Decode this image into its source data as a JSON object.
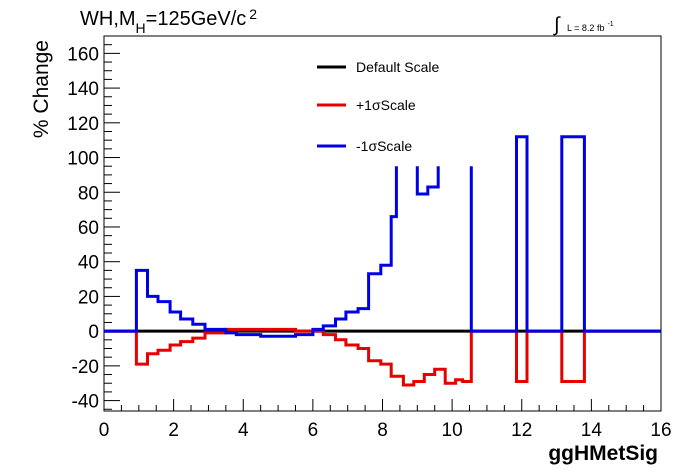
{
  "chart_data": {
    "type": "line",
    "title": "WH,M",
    "title_sub": "H",
    "title_eq": "=125GeV/c",
    "title_sup": "2",
    "lumi_text": "L = 8.2 fb",
    "lumi_sup": "-1",
    "xlabel": "ggHMetSig",
    "ylabel": "% Change",
    "xlim": [
      0,
      16
    ],
    "ylim": [
      -46,
      170
    ],
    "xticks": [
      0,
      2,
      4,
      6,
      8,
      10,
      12,
      14,
      16
    ],
    "yticks": [
      -40,
      -20,
      0,
      20,
      40,
      60,
      80,
      100,
      120,
      140,
      160
    ],
    "x_minor_step": 0.5,
    "y_minor_step": 5,
    "grid": false,
    "legend_position": "top-center",
    "series": [
      {
        "name": "Default Scale",
        "color": "#000000",
        "segments": [
          [
            [
              0,
              0
            ],
            [
              16,
              0
            ]
          ]
        ]
      },
      {
        "name": "+1σScale",
        "color": "#e60000",
        "segments": [
          [
            [
              0,
              0
            ],
            [
              0.93,
              0
            ],
            [
              0.93,
              -19
            ],
            [
              1.25,
              -19
            ],
            [
              1.25,
              -13
            ],
            [
              1.55,
              -13
            ],
            [
              1.55,
              -11
            ],
            [
              1.9,
              -11
            ],
            [
              1.9,
              -8
            ],
            [
              2.2,
              -8
            ],
            [
              2.2,
              -6
            ],
            [
              2.55,
              -6
            ],
            [
              2.55,
              -4
            ],
            [
              2.9,
              -4
            ],
            [
              2.9,
              -1
            ],
            [
              3.5,
              -1
            ],
            [
              3.5,
              1
            ],
            [
              5.5,
              1
            ],
            [
              5.5,
              0
            ],
            [
              6.3,
              0
            ],
            [
              6.3,
              -2
            ],
            [
              6.65,
              -2
            ],
            [
              6.65,
              -5
            ],
            [
              6.95,
              -5
            ],
            [
              6.95,
              -8
            ],
            [
              7.3,
              -8
            ],
            [
              7.3,
              -10
            ],
            [
              7.6,
              -10
            ],
            [
              7.6,
              -17
            ],
            [
              7.95,
              -17
            ],
            [
              7.95,
              -19
            ],
            [
              8.25,
              -19
            ],
            [
              8.25,
              -26
            ],
            [
              8.6,
              -26
            ],
            [
              8.6,
              -31
            ],
            [
              8.9,
              -31
            ],
            [
              8.9,
              -29
            ],
            [
              9.2,
              -29
            ],
            [
              9.2,
              -25
            ],
            [
              9.5,
              -25
            ],
            [
              9.5,
              -22
            ],
            [
              9.8,
              -22
            ],
            [
              9.8,
              -30
            ],
            [
              10.1,
              -30
            ],
            [
              10.1,
              -28
            ],
            [
              10.3,
              -28
            ],
            [
              10.3,
              -29
            ],
            [
              10.55,
              -29
            ],
            [
              10.55,
              0
            ],
            [
              11.85,
              0
            ],
            [
              11.85,
              -29
            ],
            [
              12.15,
              -29
            ],
            [
              12.15,
              0
            ],
            [
              13.15,
              0
            ],
            [
              13.15,
              -29
            ],
            [
              13.8,
              -29
            ],
            [
              13.8,
              0
            ],
            [
              16,
              0
            ]
          ]
        ]
      },
      {
        "name": "-1σScale",
        "color": "#0000e6",
        "segments": [
          [
            [
              0,
              0
            ],
            [
              0.93,
              0
            ],
            [
              0.93,
              35
            ],
            [
              1.25,
              35
            ],
            [
              1.25,
              20
            ],
            [
              1.55,
              20
            ],
            [
              1.55,
              17
            ],
            [
              1.9,
              17
            ],
            [
              1.9,
              11
            ],
            [
              2.2,
              11
            ],
            [
              2.2,
              7
            ],
            [
              2.55,
              7
            ],
            [
              2.55,
              4
            ],
            [
              2.9,
              4
            ],
            [
              2.9,
              1
            ],
            [
              3.5,
              1
            ],
            [
              3.5,
              -1
            ],
            [
              3.8,
              -1
            ],
            [
              3.8,
              -2
            ],
            [
              4.5,
              -2
            ],
            [
              4.5,
              -3
            ],
            [
              5.5,
              -3
            ],
            [
              5.5,
              -2
            ],
            [
              6.0,
              -2
            ],
            [
              6.0,
              1
            ],
            [
              6.3,
              1
            ],
            [
              6.3,
              3
            ],
            [
              6.65,
              3
            ],
            [
              6.65,
              7
            ],
            [
              6.95,
              7
            ],
            [
              6.95,
              11
            ],
            [
              7.3,
              11
            ],
            [
              7.3,
              13
            ],
            [
              7.6,
              13
            ],
            [
              7.6,
              33
            ],
            [
              7.95,
              33
            ],
            [
              7.95,
              38
            ],
            [
              8.25,
              38
            ],
            [
              8.25,
              66
            ],
            [
              8.4,
              66
            ],
            [
              8.4,
              95
            ]
          ],
          [
            [
              9.0,
              95
            ],
            [
              9.0,
              79
            ],
            [
              9.3,
              79
            ],
            [
              9.3,
              83
            ],
            [
              9.6,
              83
            ],
            [
              9.6,
              95
            ]
          ],
          [
            [
              10.55,
              95
            ],
            [
              10.55,
              0
            ],
            [
              11.85,
              0
            ],
            [
              11.85,
              112
            ],
            [
              12.15,
              112
            ],
            [
              12.15,
              0
            ],
            [
              13.15,
              0
            ],
            [
              13.15,
              112
            ],
            [
              13.8,
              112
            ],
            [
              13.8,
              0
            ],
            [
              16,
              0
            ]
          ]
        ]
      }
    ]
  }
}
